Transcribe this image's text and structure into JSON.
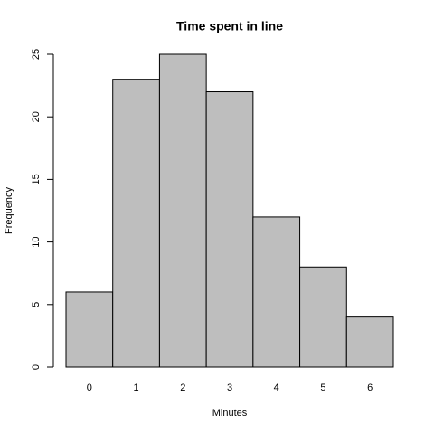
{
  "chart_data": {
    "type": "bar",
    "title": "Time spent in line",
    "x_label": "Minutes",
    "y_label": "Frequency",
    "categories": [
      "0",
      "1",
      "2",
      "3",
      "4",
      "5",
      "6"
    ],
    "values": [
      6,
      23,
      25,
      22,
      12,
      8,
      4
    ],
    "color": "#bebebe",
    "ylim": [
      0,
      25
    ],
    "yticks": [
      0,
      5,
      10,
      15,
      20,
      25
    ],
    "grid": false
  }
}
